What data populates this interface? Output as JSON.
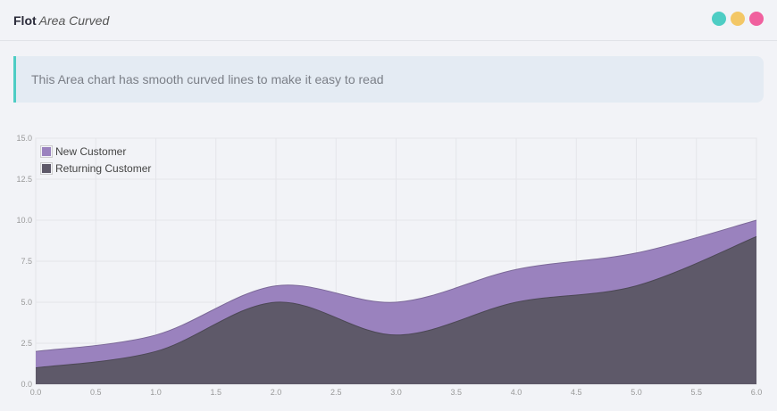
{
  "header": {
    "title_bold": "Flot",
    "title_italic": "Area Curved",
    "dots": [
      "#4ecdc4",
      "#f3c766",
      "#f0609e"
    ]
  },
  "note": "This Area chart has smooth curved lines to make it easy to read",
  "chart_data": {
    "type": "area",
    "x": [
      0,
      1,
      2,
      3,
      4,
      5,
      6
    ],
    "series": [
      {
        "name": "New Customer",
        "values": [
          2,
          3,
          6,
          5,
          7,
          8,
          10
        ],
        "color": "#9a82be"
      },
      {
        "name": "Returning Customer",
        "values": [
          1,
          2,
          5,
          3,
          5,
          6,
          9
        ],
        "color": "#5e5969"
      }
    ],
    "xlim": [
      0,
      6
    ],
    "ylim": [
      0,
      15
    ],
    "xticks": [
      "0.0",
      "0.5",
      "1.0",
      "1.5",
      "2.0",
      "2.5",
      "3.0",
      "3.5",
      "4.0",
      "4.5",
      "5.0",
      "5.5",
      "6.0"
    ],
    "yticks": [
      "0.0",
      "2.5",
      "5.0",
      "7.5",
      "10.0",
      "12.5",
      "15.0"
    ],
    "grid": true,
    "legend": "top-left",
    "curved": true
  }
}
